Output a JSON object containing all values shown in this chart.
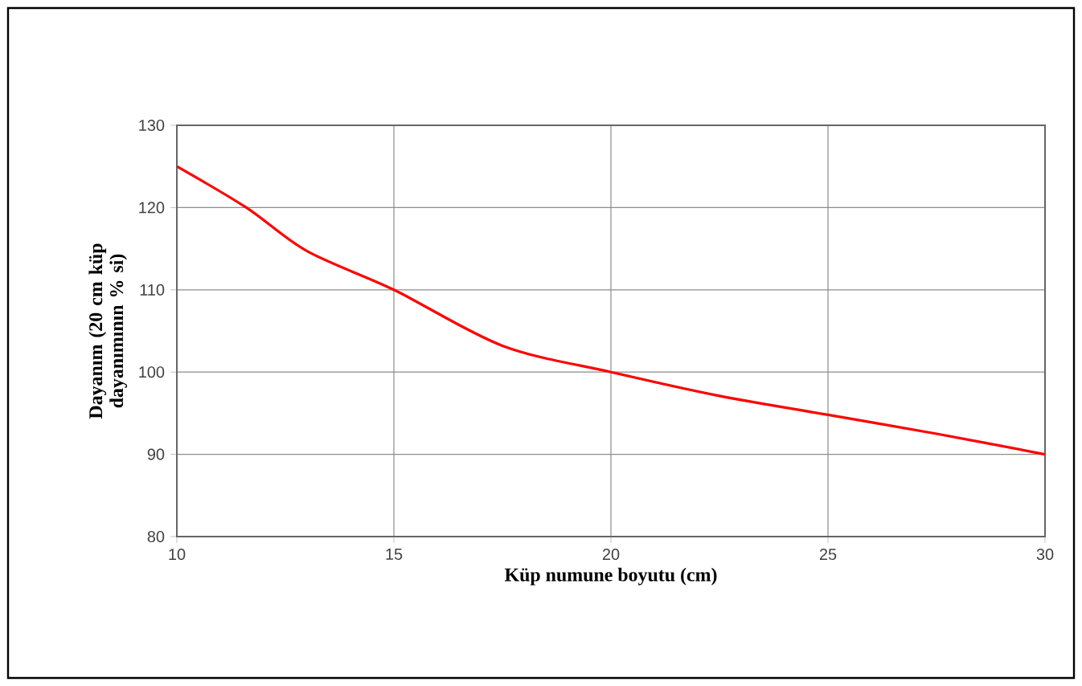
{
  "chart_data": {
    "type": "line",
    "xlabel": "Küp numune boyutu (cm)",
    "ylabel": "Dayanım (20 cm küp dayanımının % si)",
    "x": [
      10,
      11.6,
      13,
      15,
      17.5,
      20,
      22.5,
      25,
      27.5,
      30
    ],
    "series": [
      {
        "color": "#ff0000",
        "values": [
          125,
          120,
          114.7,
          110,
          103.2,
          100,
          97.1,
          94.8,
          92.5,
          90
        ]
      }
    ],
    "xlim": [
      10,
      30
    ],
    "xticks": [
      10,
      15,
      20,
      25,
      30
    ],
    "ylim": [
      80,
      130
    ],
    "yticks": [
      80,
      90,
      100,
      110,
      120,
      130
    ],
    "grid": true,
    "marker": "none",
    "line_style": "solid"
  }
}
